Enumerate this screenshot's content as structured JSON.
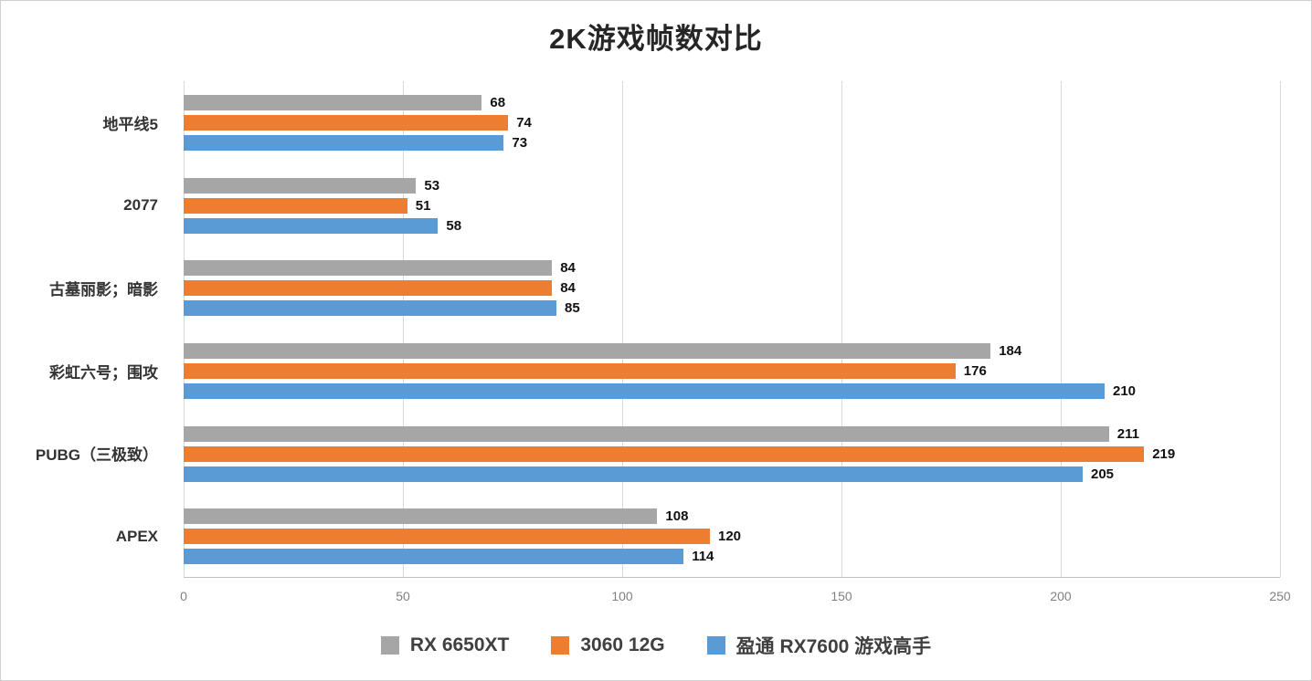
{
  "title": "2K游戏帧数对比",
  "chart_data": {
    "type": "bar",
    "orientation": "horizontal",
    "title": "2K游戏帧数对比",
    "categories": [
      "地平线5",
      "2077",
      "古墓丽影；暗影",
      "彩虹六号；围攻",
      "PUBG（三极致）",
      "APEX"
    ],
    "series": [
      {
        "name": "RX 6650XT",
        "color": "#a6a6a6",
        "values": [
          68,
          53,
          84,
          184,
          211,
          108
        ]
      },
      {
        "name": "3060 12G",
        "color": "#ed7d31",
        "values": [
          74,
          51,
          84,
          176,
          219,
          120
        ]
      },
      {
        "name": "盈通 RX7600 游戏高手",
        "color": "#5b9bd5",
        "values": [
          73,
          58,
          85,
          210,
          205,
          114
        ]
      }
    ],
    "xlim": [
      0,
      250
    ],
    "x_ticks": [
      0,
      50,
      100,
      150,
      200,
      250
    ],
    "grid": true,
    "legend_position": "bottom",
    "value_labels": true
  }
}
